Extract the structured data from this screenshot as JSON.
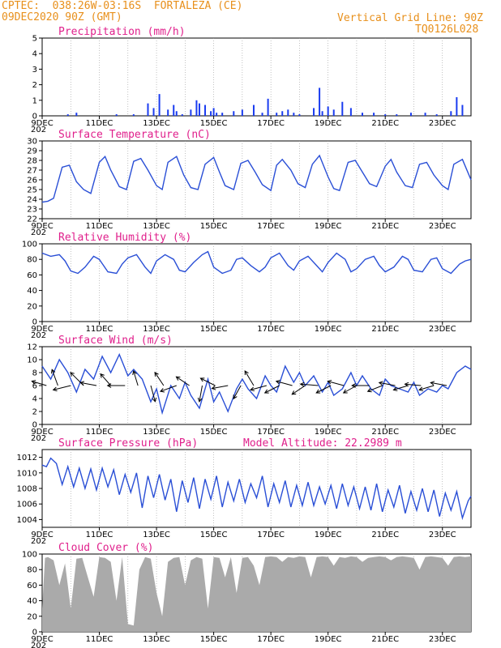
{
  "header": {
    "line1": "CPTEC:  038:26W-03:16S  FORTALEZA (CE)",
    "line2": "09DEC2020 90Z (GMT)",
    "grid_label": "Vertical Grid Line: 90Z",
    "code": "TQ0126L028"
  },
  "x_ticks": [
    "9DEC",
    "11DEC",
    "13DEC",
    "15DEC",
    "17DEC",
    "19DEC",
    "21DEC",
    "23DEC"
  ],
  "x_sub": "202",
  "colors": {
    "line": "#2a4fd6",
    "bar": "#1a3cf0",
    "cloud": "#aaaaaa",
    "title": "#e0208c",
    "header": "#e8901c"
  },
  "chart_data": [
    {
      "type": "bar",
      "title": "Precipitation (mm/h)",
      "ylim": [
        0,
        5
      ],
      "yticks": [
        0,
        1,
        2,
        3,
        4,
        5
      ],
      "x_days": [
        0,
        15
      ],
      "series": [
        {
          "name": "Precipitation",
          "x": [
            0.9,
            1.2,
            2.6,
            3.2,
            3.7,
            3.9,
            4.1,
            4.4,
            4.6,
            4.7,
            4.9,
            5.2,
            5.4,
            5.5,
            5.7,
            5.9,
            6.0,
            6.1,
            6.3,
            6.7,
            7.0,
            7.4,
            7.7,
            7.9,
            8.2,
            8.4,
            8.6,
            8.8,
            9.0,
            9.5,
            9.7,
            9.8,
            10.0,
            10.2,
            10.5,
            10.8,
            11.2,
            11.6,
            12.0,
            12.4,
            12.9,
            13.4,
            13.8,
            14.3,
            14.5,
            14.7
          ],
          "values": [
            0.1,
            0.2,
            0.1,
            0.1,
            0.8,
            0.5,
            1.4,
            0.4,
            0.7,
            0.3,
            0.1,
            0.4,
            1.0,
            0.8,
            0.7,
            0.3,
            0.5,
            0.2,
            0.2,
            0.3,
            0.4,
            0.7,
            0.2,
            1.1,
            0.2,
            0.3,
            0.4,
            0.2,
            0.1,
            0.5,
            1.8,
            0.3,
            0.6,
            0.4,
            0.9,
            0.5,
            0.2,
            0.2,
            0.1,
            0.1,
            0.2,
            0.2,
            0.1,
            0.3,
            1.2,
            0.7
          ]
        }
      ]
    },
    {
      "type": "line",
      "title": "Surface Temperature (nC)",
      "ylim": [
        22,
        30
      ],
      "yticks": [
        22,
        23,
        24,
        25,
        26,
        27,
        28,
        29,
        30
      ],
      "x_days": [
        0,
        15
      ],
      "series": [
        {
          "name": "Temperature",
          "x": [
            0,
            0.2,
            0.4,
            0.7,
            0.95,
            1.2,
            1.45,
            1.7,
            2.0,
            2.2,
            2.4,
            2.7,
            2.95,
            3.2,
            3.45,
            3.7,
            4.0,
            4.2,
            4.4,
            4.7,
            4.95,
            5.2,
            5.45,
            5.7,
            6.0,
            6.2,
            6.4,
            6.7,
            6.95,
            7.2,
            7.45,
            7.7,
            8.0,
            8.2,
            8.4,
            8.7,
            8.95,
            9.2,
            9.45,
            9.7,
            10.0,
            10.2,
            10.4,
            10.7,
            10.95,
            11.2,
            11.45,
            11.7,
            12.0,
            12.2,
            12.4,
            12.7,
            12.95,
            13.2,
            13.45,
            13.7,
            14.0,
            14.2,
            14.4,
            14.7,
            15.0
          ],
          "values": [
            23.7,
            23.8,
            24.1,
            27.3,
            27.5,
            25.8,
            25.0,
            24.6,
            27.8,
            28.4,
            27.0,
            25.3,
            25.0,
            27.9,
            28.2,
            27.0,
            25.4,
            25.0,
            27.8,
            28.4,
            26.5,
            25.2,
            25.0,
            27.6,
            28.3,
            26.8,
            25.4,
            25.0,
            27.7,
            28.0,
            26.8,
            25.5,
            24.9,
            27.5,
            28.1,
            27.0,
            25.6,
            25.2,
            27.6,
            28.5,
            26.3,
            25.1,
            24.9,
            27.8,
            28.0,
            26.8,
            25.6,
            25.3,
            27.4,
            28.1,
            26.8,
            25.4,
            25.2,
            27.6,
            27.8,
            26.5,
            25.4,
            25.0,
            27.6,
            28.1,
            26.0
          ]
        }
      ]
    },
    {
      "type": "line",
      "title": "Relative Humidity (%)",
      "ylim": [
        0,
        100
      ],
      "yticks": [
        0,
        20,
        40,
        60,
        80,
        100
      ],
      "x_days": [
        0,
        15
      ],
      "series": [
        {
          "name": "Humidity",
          "x": [
            0,
            0.3,
            0.6,
            0.8,
            1.0,
            1.25,
            1.5,
            1.8,
            2.0,
            2.3,
            2.6,
            2.8,
            3.0,
            3.3,
            3.6,
            3.8,
            4.0,
            4.3,
            4.6,
            4.8,
            5.0,
            5.3,
            5.6,
            5.8,
            6.0,
            6.3,
            6.6,
            6.8,
            7.0,
            7.3,
            7.6,
            7.8,
            8.0,
            8.3,
            8.6,
            8.8,
            9.0,
            9.3,
            9.6,
            9.8,
            10.0,
            10.3,
            10.6,
            10.8,
            11.0,
            11.3,
            11.6,
            11.8,
            12.0,
            12.3,
            12.6,
            12.8,
            13.0,
            13.3,
            13.6,
            13.8,
            14.0,
            14.3,
            14.6,
            14.8,
            15.0
          ],
          "values": [
            88,
            84,
            86,
            78,
            65,
            62,
            70,
            84,
            80,
            64,
            62,
            74,
            82,
            86,
            70,
            62,
            78,
            86,
            80,
            66,
            64,
            76,
            86,
            90,
            70,
            62,
            66,
            80,
            82,
            72,
            64,
            70,
            82,
            88,
            72,
            66,
            78,
            84,
            72,
            64,
            76,
            88,
            80,
            64,
            68,
            80,
            84,
            72,
            64,
            70,
            84,
            80,
            66,
            64,
            80,
            82,
            68,
            62,
            74,
            78,
            80
          ]
        }
      ]
    },
    {
      "type": "line",
      "title": "Surface Wind (m/s)",
      "ylim": [
        0,
        12
      ],
      "yticks": [
        0,
        2,
        4,
        6,
        8,
        10,
        12
      ],
      "x_days": [
        0,
        15
      ],
      "series": [
        {
          "name": "Wind speed",
          "x": [
            0,
            0.3,
            0.6,
            0.9,
            1.2,
            1.5,
            1.8,
            2.1,
            2.4,
            2.7,
            3.0,
            3.2,
            3.5,
            3.8,
            4.0,
            4.2,
            4.5,
            4.8,
            5.0,
            5.2,
            5.5,
            5.8,
            6.0,
            6.2,
            6.5,
            6.8,
            7.0,
            7.2,
            7.5,
            7.8,
            8.0,
            8.2,
            8.5,
            8.8,
            9.0,
            9.2,
            9.5,
            9.8,
            10.0,
            10.2,
            10.5,
            10.8,
            11.0,
            11.2,
            11.5,
            11.8,
            12.0,
            12.2,
            12.5,
            12.8,
            13.0,
            13.2,
            13.5,
            13.8,
            14.0,
            14.2,
            14.5,
            14.8,
            15.0
          ],
          "values": [
            9.0,
            7.0,
            10.0,
            8.0,
            5.0,
            8.5,
            7.0,
            10.5,
            8.0,
            10.8,
            7.5,
            8.5,
            7.0,
            3.5,
            5.5,
            1.8,
            6.0,
            4.0,
            6.5,
            4.5,
            2.5,
            7.0,
            3.5,
            5.0,
            2.0,
            5.5,
            7.0,
            5.5,
            4.0,
            7.5,
            6.0,
            5.0,
            9.0,
            6.5,
            8.0,
            6.0,
            7.5,
            5.0,
            6.5,
            4.5,
            5.5,
            8.0,
            6.0,
            7.5,
            5.5,
            4.5,
            7.0,
            6.0,
            5.5,
            5.0,
            6.5,
            4.5,
            5.5,
            5.0,
            6.0,
            5.5,
            8.0,
            9.0,
            8.5
          ]
        }
      ],
      "vectors": [
        {
          "x": 0.15,
          "u": -1.0,
          "v": 0.3
        },
        {
          "x": 0.55,
          "u": -0.4,
          "v": 1.1
        },
        {
          "x": 1.0,
          "u": -1.2,
          "v": -0.3
        },
        {
          "x": 1.45,
          "u": -0.9,
          "v": 0.9
        },
        {
          "x": 1.9,
          "u": -1.1,
          "v": 0.2
        },
        {
          "x": 2.4,
          "u": -0.7,
          "v": 0.8
        },
        {
          "x": 2.9,
          "u": -1.2,
          "v": 0.0
        },
        {
          "x": 3.35,
          "u": -0.3,
          "v": 1.0
        },
        {
          "x": 3.8,
          "u": 0.3,
          "v": -1.1
        },
        {
          "x": 4.25,
          "u": -0.6,
          "v": 0.9
        },
        {
          "x": 4.7,
          "u": -1.1,
          "v": -0.4
        },
        {
          "x": 5.15,
          "u": -0.9,
          "v": 0.6
        },
        {
          "x": 5.6,
          "u": -0.2,
          "v": -1.1
        },
        {
          "x": 6.05,
          "u": -1.0,
          "v": 0.5
        },
        {
          "x": 6.5,
          "u": -1.1,
          "v": -0.2
        },
        {
          "x": 6.95,
          "u": -0.5,
          "v": -0.9
        },
        {
          "x": 7.4,
          "u": -0.6,
          "v": 1.0
        },
        {
          "x": 7.85,
          "u": -1.1,
          "v": -0.3
        },
        {
          "x": 8.3,
          "u": -1.0,
          "v": -0.5
        },
        {
          "x": 8.75,
          "u": -1.1,
          "v": 0.3
        },
        {
          "x": 9.2,
          "u": -0.9,
          "v": -0.6
        },
        {
          "x": 9.65,
          "u": -1.2,
          "v": 0.1
        },
        {
          "x": 10.1,
          "u": -1.0,
          "v": -0.5
        },
        {
          "x": 10.55,
          "u": -1.1,
          "v": 0.3
        },
        {
          "x": 11.0,
          "u": -0.9,
          "v": -0.5
        },
        {
          "x": 11.45,
          "u": -1.2,
          "v": 0.0
        },
        {
          "x": 11.9,
          "u": -1.0,
          "v": -0.4
        },
        {
          "x": 12.35,
          "u": -1.1,
          "v": 0.2
        },
        {
          "x": 12.8,
          "u": -1.0,
          "v": -0.3
        },
        {
          "x": 13.25,
          "u": -1.1,
          "v": 0.1
        },
        {
          "x": 13.7,
          "u": -1.0,
          "v": -0.3
        },
        {
          "x": 14.15,
          "u": -1.1,
          "v": 0.2
        }
      ]
    },
    {
      "type": "line",
      "title": "Surface Pressure (hPa)",
      "annotation": "Model Altitude: 22.2989 m",
      "ylim": [
        1003,
        1013
      ],
      "yticks": [
        1004,
        1006,
        1008,
        1010,
        1012
      ],
      "x_days": [
        0,
        15
      ],
      "series": [
        {
          "name": "Pressure",
          "x": [
            0,
            0.15,
            0.3,
            0.5,
            0.7,
            0.9,
            1.1,
            1.3,
            1.5,
            1.7,
            1.9,
            2.1,
            2.3,
            2.5,
            2.7,
            2.9,
            3.1,
            3.3,
            3.5,
            3.7,
            3.9,
            4.1,
            4.3,
            4.5,
            4.7,
            4.9,
            5.1,
            5.3,
            5.5,
            5.7,
            5.9,
            6.1,
            6.3,
            6.5,
            6.7,
            6.9,
            7.1,
            7.3,
            7.5,
            7.7,
            7.9,
            8.1,
            8.3,
            8.5,
            8.7,
            8.9,
            9.1,
            9.3,
            9.5,
            9.7,
            9.9,
            10.1,
            10.3,
            10.5,
            10.7,
            10.9,
            11.1,
            11.3,
            11.5,
            11.7,
            11.9,
            12.1,
            12.3,
            12.5,
            12.7,
            12.9,
            13.1,
            13.3,
            13.5,
            13.7,
            13.9,
            14.1,
            14.3,
            14.5,
            14.7,
            14.9,
            15.0
          ],
          "values": [
            1011.0,
            1010.8,
            1011.9,
            1011.2,
            1008.5,
            1010.8,
            1008.2,
            1010.6,
            1008.0,
            1010.5,
            1007.8,
            1010.6,
            1008.2,
            1010.4,
            1007.2,
            1009.8,
            1007.5,
            1010.0,
            1005.5,
            1009.6,
            1006.8,
            1009.8,
            1006.5,
            1009.2,
            1005.0,
            1009.0,
            1006.2,
            1009.4,
            1005.4,
            1009.2,
            1006.6,
            1009.6,
            1005.6,
            1008.8,
            1006.4,
            1009.2,
            1006.2,
            1008.6,
            1006.8,
            1009.6,
            1005.6,
            1008.6,
            1006.2,
            1009.0,
            1005.6,
            1008.4,
            1005.8,
            1008.8,
            1005.8,
            1008.2,
            1006.0,
            1008.4,
            1005.4,
            1008.6,
            1005.8,
            1008.2,
            1005.4,
            1008.2,
            1005.2,
            1008.6,
            1005.0,
            1007.8,
            1005.6,
            1008.4,
            1004.8,
            1007.6,
            1005.2,
            1008.0,
            1005.0,
            1007.8,
            1004.4,
            1007.4,
            1005.2,
            1007.6,
            1004.2,
            1006.4,
            1007.0
          ]
        }
      ]
    },
    {
      "type": "area",
      "title": "Cloud Cover (%)",
      "ylim": [
        0,
        100
      ],
      "yticks": [
        0,
        20,
        40,
        60,
        80,
        100
      ],
      "x_days": [
        0,
        15
      ],
      "series": [
        {
          "name": "Cloud cover",
          "x": [
            0,
            0.1,
            0.2,
            0.4,
            0.6,
            0.8,
            1.0,
            1.2,
            1.4,
            1.6,
            1.8,
            2.0,
            2.2,
            2.4,
            2.6,
            2.8,
            3.0,
            3.2,
            3.4,
            3.6,
            3.8,
            4.0,
            4.2,
            4.4,
            4.6,
            4.8,
            5.0,
            5.2,
            5.4,
            5.6,
            5.8,
            6.0,
            6.2,
            6.4,
            6.6,
            6.8,
            7.0,
            7.2,
            7.4,
            7.6,
            7.8,
            8.0,
            8.2,
            8.4,
            8.6,
            8.8,
            9.0,
            9.2,
            9.4,
            9.6,
            9.8,
            10.0,
            10.2,
            10.4,
            10.6,
            10.8,
            11.0,
            11.2,
            11.4,
            11.6,
            11.8,
            12.0,
            12.2,
            12.4,
            12.6,
            12.8,
            13.0,
            13.2,
            13.4,
            13.6,
            13.8,
            14.0,
            14.2,
            14.4,
            14.6,
            14.8,
            15.0
          ],
          "values": [
            30,
            95,
            96,
            92,
            60,
            88,
            30,
            94,
            95,
            70,
            45,
            96,
            95,
            90,
            40,
            96,
            10,
            8,
            80,
            96,
            94,
            50,
            20,
            90,
            95,
            96,
            60,
            92,
            96,
            94,
            30,
            96,
            95,
            70,
            96,
            50,
            95,
            96,
            85,
            60,
            96,
            97,
            96,
            90,
            96,
            95,
            97,
            96,
            70,
            96,
            97,
            96,
            85,
            96,
            95,
            97,
            96,
            90,
            95,
            96,
            97,
            96,
            92,
            96,
            97,
            96,
            95,
            80,
            96,
            97,
            96,
            95,
            85,
            96,
            97,
            96,
            97
          ]
        }
      ]
    }
  ]
}
